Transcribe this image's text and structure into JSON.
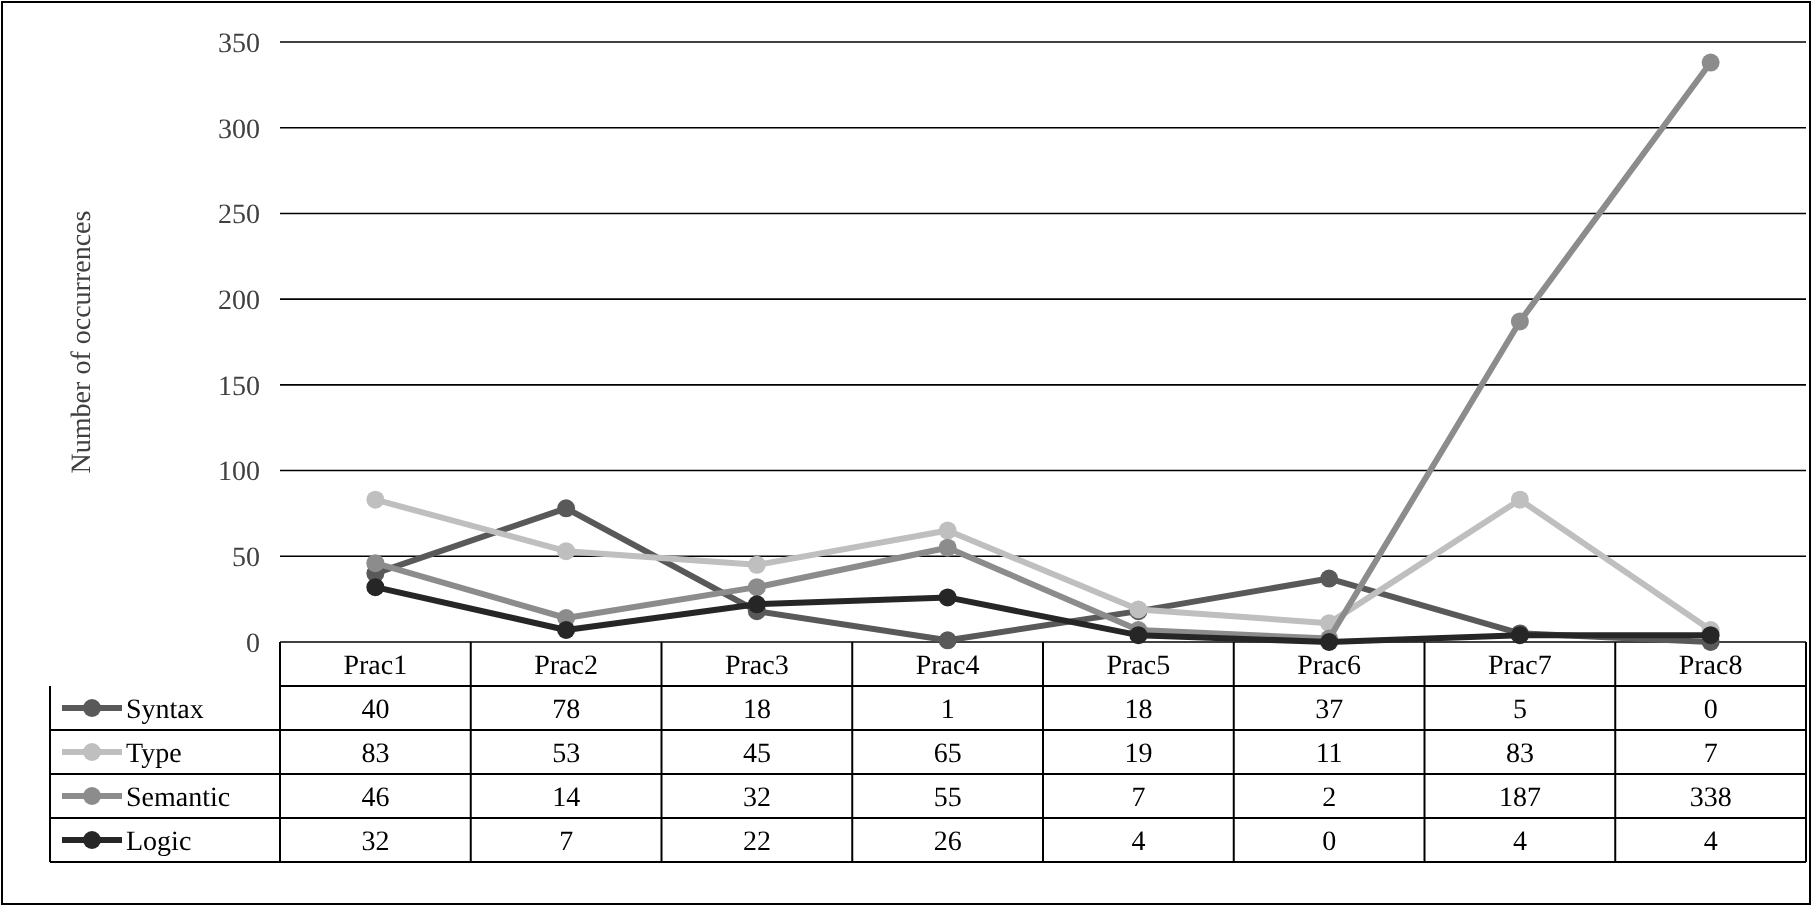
{
  "chart_data": {
    "type": "line",
    "ylabel": "Number of occurrences",
    "categories": [
      "Prac1",
      "Prac2",
      "Prac3",
      "Prac4",
      "Prac5",
      "Prac6",
      "Prac7",
      "Prac8"
    ],
    "series": [
      {
        "name": "Syntax",
        "color": "#595959",
        "values": [
          40,
          78,
          18,
          1,
          18,
          37,
          5,
          0
        ]
      },
      {
        "name": "Type",
        "color": "#bfbfbf",
        "values": [
          83,
          53,
          45,
          65,
          19,
          11,
          83,
          7
        ]
      },
      {
        "name": "Semantic",
        "color": "#8c8c8c",
        "values": [
          46,
          14,
          32,
          55,
          7,
          2,
          187,
          338
        ]
      },
      {
        "name": "Logic",
        "color": "#262626",
        "values": [
          32,
          7,
          22,
          26,
          4,
          0,
          4,
          4
        ]
      }
    ],
    "ylim": [
      0,
      350
    ],
    "yticks": [
      0,
      50,
      100,
      150,
      200,
      250,
      300,
      350
    ],
    "grid": "y",
    "marker": "circle",
    "legend": "bottom",
    "data_labels": true
  }
}
